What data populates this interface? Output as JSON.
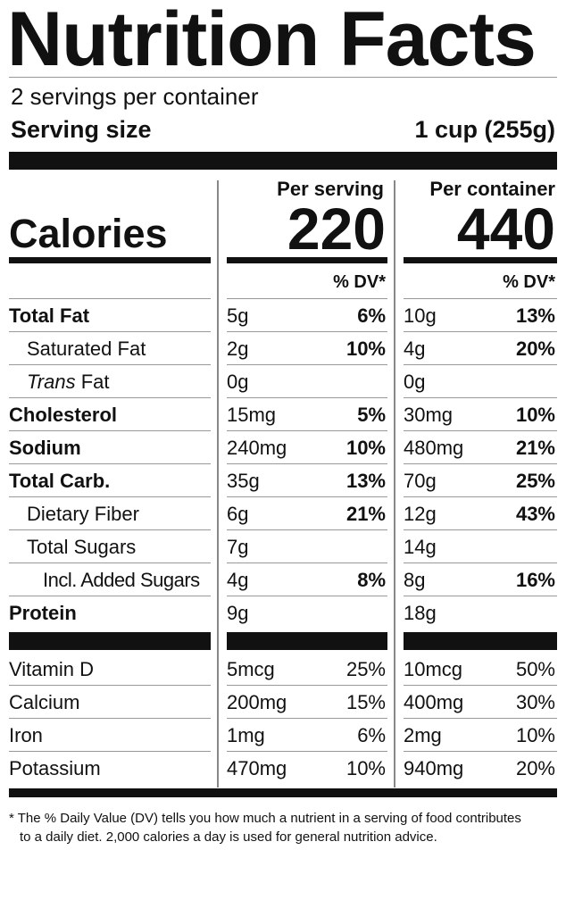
{
  "header": {
    "title": "Nutrition Facts",
    "servings": "2 servings per container",
    "serving_size_label": "Serving size",
    "serving_size": "1 cup (255g)"
  },
  "columns": [
    "Per serving",
    "Per container"
  ],
  "calories": {
    "label": "Calories",
    "values": [
      "220",
      "440"
    ]
  },
  "dv_header": "% DV*",
  "nutrients": [
    {
      "name": "Total Fat",
      "style": "bold",
      "serving": {
        "amount": "5g",
        "dv": "6%"
      },
      "container": {
        "amount": "10g",
        "dv": "13%"
      }
    },
    {
      "name": "Saturated Fat",
      "style": "indent",
      "serving": {
        "amount": "2g",
        "dv": "10%"
      },
      "container": {
        "amount": "4g",
        "dv": "20%"
      }
    },
    {
      "name_italic": "Trans",
      "name": "Fat",
      "style": "indent",
      "serving": {
        "amount": "0g"
      },
      "container": {
        "amount": "0g"
      }
    },
    {
      "name": "Cholesterol",
      "style": "bold",
      "serving": {
        "amount": "15mg",
        "dv": "5%"
      },
      "container": {
        "amount": "30mg",
        "dv": "10%"
      }
    },
    {
      "name": "Sodium",
      "style": "bold",
      "serving": {
        "amount": "240mg",
        "dv": "10%"
      },
      "container": {
        "amount": "480mg",
        "dv": "21%"
      }
    },
    {
      "name": "Total Carb.",
      "style": "bold",
      "serving": {
        "amount": "35g",
        "dv": "13%"
      },
      "container": {
        "amount": "70g",
        "dv": "25%"
      }
    },
    {
      "name": "Dietary Fiber",
      "style": "indent",
      "serving": {
        "amount": "6g",
        "dv": "21%"
      },
      "container": {
        "amount": "12g",
        "dv": "43%"
      }
    },
    {
      "name": "Total Sugars",
      "style": "indent",
      "serving": {
        "amount": "7g"
      },
      "container": {
        "amount": "14g"
      }
    },
    {
      "name": "Incl. Added Sugars",
      "style": "indent2",
      "serving": {
        "amount": "4g",
        "dv": "8%"
      },
      "container": {
        "amount": "8g",
        "dv": "16%"
      }
    },
    {
      "name": "Protein",
      "style": "bold",
      "serving": {
        "amount": "9g"
      },
      "container": {
        "amount": "18g"
      }
    }
  ],
  "vitamins": [
    {
      "name": "Vitamin D",
      "serving": {
        "amount": "5mcg",
        "dv": "25%"
      },
      "container": {
        "amount": "10mcg",
        "dv": "50%"
      }
    },
    {
      "name": "Calcium",
      "serving": {
        "amount": "200mg",
        "dv": "15%"
      },
      "container": {
        "amount": "400mg",
        "dv": "30%"
      }
    },
    {
      "name": "Iron",
      "serving": {
        "amount": "1mg",
        "dv": "6%"
      },
      "container": {
        "amount": "2mg",
        "dv": "10%"
      }
    },
    {
      "name": "Potassium",
      "serving": {
        "amount": "470mg",
        "dv": "10%"
      },
      "container": {
        "amount": "940mg",
        "dv": "20%"
      }
    }
  ],
  "footnote": "* The % Daily Value (DV) tells you how much a nutrient in a serving of food contributes to a daily diet. 2,000 calories a day is used for general nutrition advice."
}
